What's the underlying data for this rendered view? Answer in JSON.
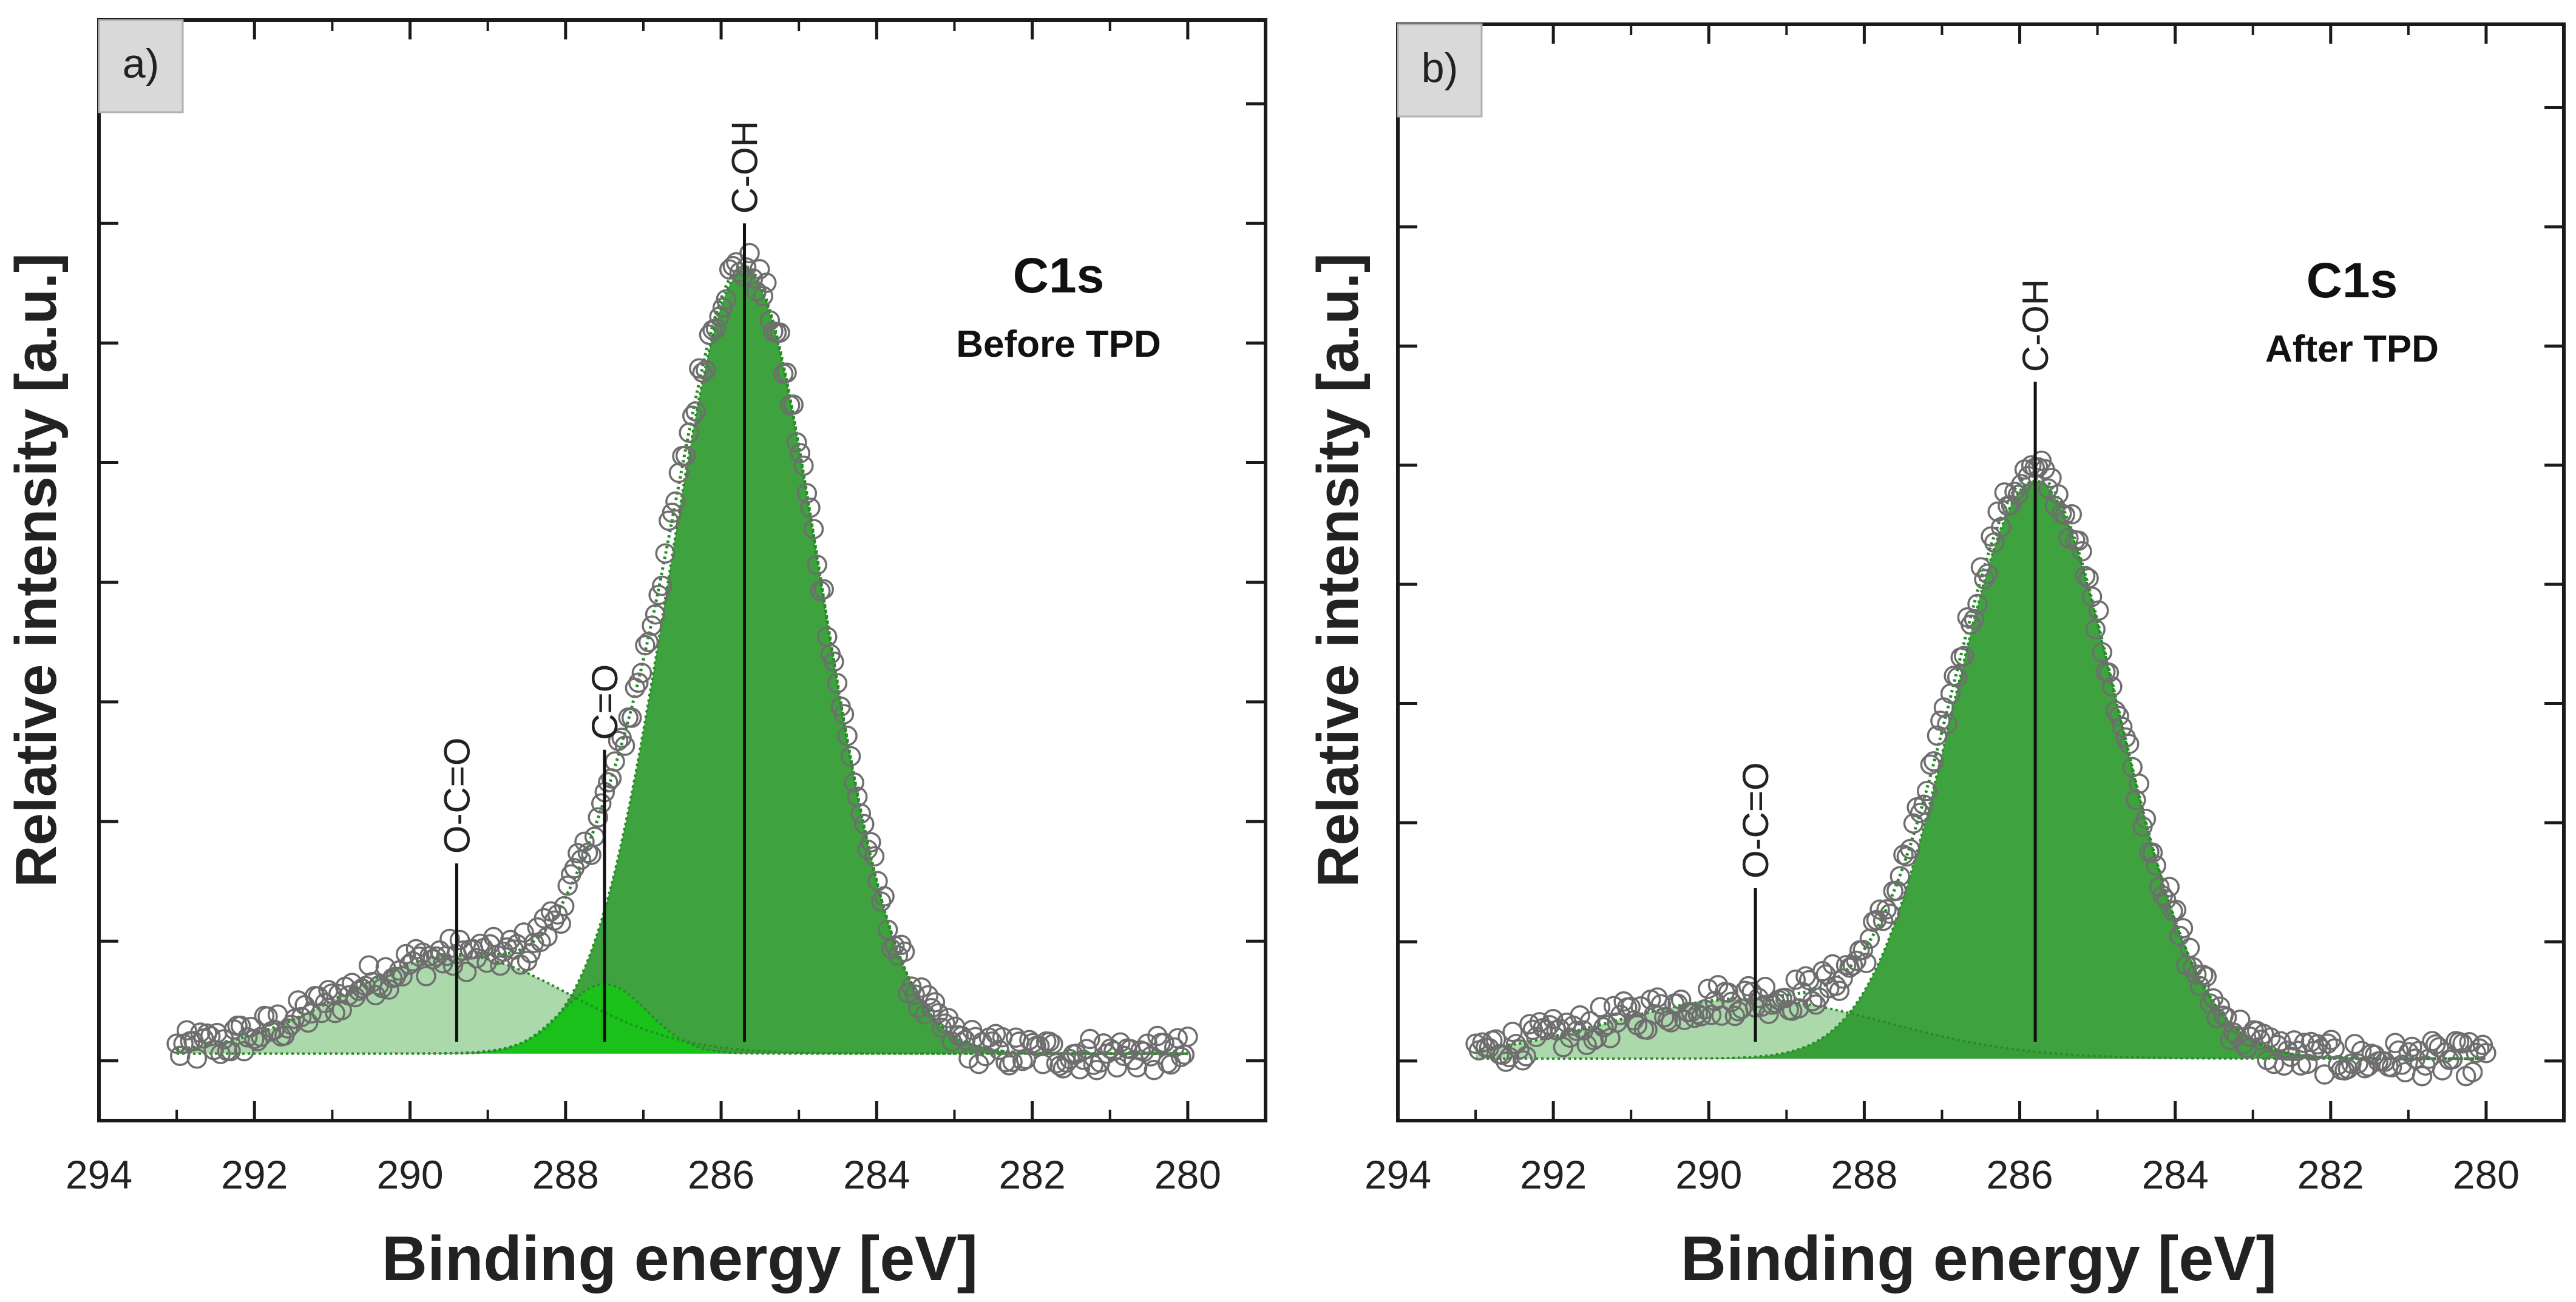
{
  "figure": {
    "panels": [
      {
        "panel_label": "a)",
        "title": "C1s",
        "subtitle": "Before TPD",
        "xlabel": "Binding energy [eV]",
        "ylabel": "Relative intensity [a.u.]"
      },
      {
        "panel_label": "b)",
        "title": "C1s",
        "subtitle": "After TPD",
        "xlabel": "Binding energy [eV]",
        "ylabel": "Relative intensity [a.u.]"
      }
    ]
  },
  "colors": {
    "axis": "#1a1a1a",
    "marker_stroke": "#6e6e6e",
    "label_box": "#d9d9d9",
    "peak_COH": "#2e9a2e",
    "peak_CO": "#16c616",
    "peak_OCO": "#8fcc8f",
    "fit_line": "#2a8a2a"
  },
  "chart_data": [
    {
      "type": "scatter",
      "title": "C1s",
      "subtitle": "Before TPD",
      "panel_label": "a)",
      "xlabel": "Binding energy [eV]",
      "ylabel": "Relative intensity [a.u.]",
      "xlim": [
        294,
        279
      ],
      "ylim": [
        -0.5,
        8.7
      ],
      "x_ticks": [
        294,
        292,
        290,
        288,
        286,
        284,
        282,
        280
      ],
      "y_ticks_unlabeled": [
        0,
        1,
        2,
        3,
        4,
        5,
        6,
        7,
        8
      ],
      "x_range_measured": [
        293,
        280
      ],
      "baseline": 0.06,
      "noise_amplitude": 0.15,
      "components": [
        {
          "label": "O-C=O",
          "center": 289.4,
          "height": 0.82,
          "fwhm": 3.4
        },
        {
          "label": "C=O",
          "center": 287.5,
          "height": 0.58,
          "fwhm": 1.3
        },
        {
          "label": "C-OH",
          "center": 285.7,
          "height": 6.55,
          "fwhm": 2.3
        }
      ],
      "peak_markers": [
        {
          "label": "O-C=O",
          "x": 289.4,
          "top": 1.65
        },
        {
          "label": "C=O",
          "x": 287.5,
          "top": 2.6
        },
        {
          "label": "C-OH",
          "x": 285.7,
          "top": 7.0
        }
      ],
      "legend": "none"
    },
    {
      "type": "scatter",
      "title": "C1s",
      "subtitle": "After TPD",
      "panel_label": "b)",
      "xlabel": "Binding energy [eV]",
      "ylabel": "Relative intensity [a.u.]",
      "xlim": [
        294,
        279
      ],
      "ylim": [
        -0.5,
        8.7
      ],
      "x_ticks": [
        294,
        292,
        290,
        288,
        286,
        284,
        282,
        280
      ],
      "y_ticks_unlabeled": [
        0,
        1,
        2,
        3,
        4,
        5,
        6,
        7,
        8
      ],
      "x_range_measured": [
        293,
        280
      ],
      "baseline": 0.02,
      "noise_amplitude": 0.15,
      "components": [
        {
          "label": "O-C=O",
          "center": 289.5,
          "height": 0.5,
          "fwhm": 4.2
        },
        {
          "label": "C-OH",
          "center": 285.8,
          "height": 4.85,
          "fwhm": 2.5
        }
      ],
      "peak_markers": [
        {
          "label": "O-C=O",
          "x": 289.4,
          "top": 1.45
        },
        {
          "label": "C-OH",
          "x": 285.8,
          "top": 5.7
        }
      ],
      "legend": "none"
    }
  ]
}
